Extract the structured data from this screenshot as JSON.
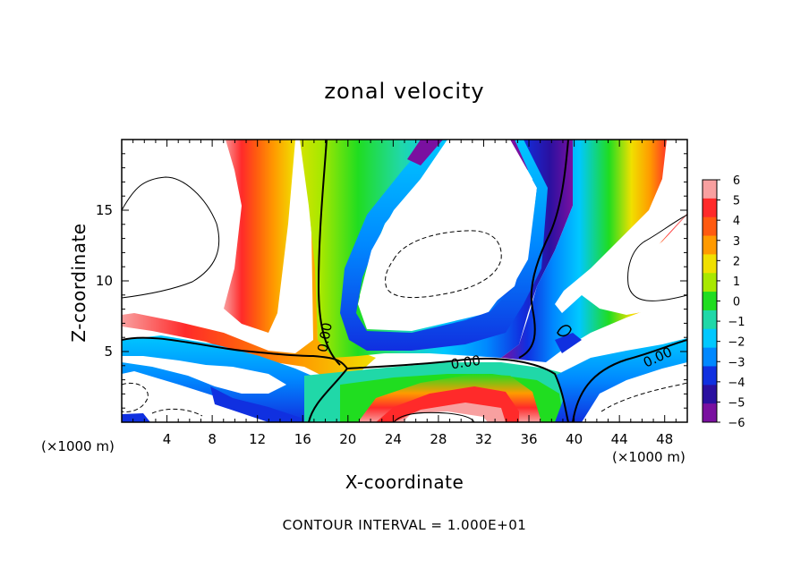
{
  "chart_data": {
    "type": "heatmap",
    "title": "zonal velocity",
    "xlabel": "X-coordinate",
    "ylabel": "Z-coordinate",
    "x_unit": "(×1000 m)",
    "y_unit": "(×1000 m)",
    "footer": "CONTOUR INTERVAL = 1.000E+01",
    "xlim": [
      0,
      50
    ],
    "ylim": [
      0,
      20
    ],
    "x_ticks": [
      4,
      8,
      12,
      16,
      20,
      24,
      28,
      32,
      36,
      40,
      44,
      48
    ],
    "y_ticks": [
      5,
      10,
      15
    ],
    "colorbar": {
      "levels": [
        6,
        5,
        4,
        3,
        2,
        1,
        0,
        -1,
        -2,
        -3,
        -4,
        -5,
        -6
      ],
      "colors": [
        "#f8a0a0",
        "#ff2a2a",
        "#ff5a10",
        "#ff9a00",
        "#f0e000",
        "#a8e800",
        "#20dd20",
        "#20d8a8",
        "#00c8ff",
        "#0088ff",
        "#1030e0",
        "#2a10a0",
        "#7a10a0"
      ]
    },
    "contour_labels": [
      "0.00",
      "0.00",
      "0.00"
    ]
  }
}
